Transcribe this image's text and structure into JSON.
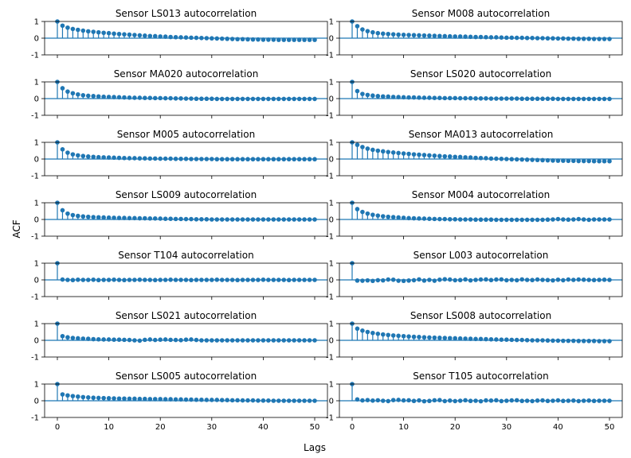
{
  "figure": {
    "ylabel": "ACF",
    "xlabel": "Lags",
    "colors": {
      "stem": "#1f77b4",
      "axes": "#000000",
      "background": "#ffffff"
    }
  },
  "chart_data": [
    {
      "type": "stem",
      "title": "Sensor LS013 autocorrelation",
      "x_range": [
        0,
        50
      ],
      "ylim": [
        -1,
        1
      ],
      "yticks": [
        -1,
        0,
        1
      ],
      "xticks": [
        0,
        10,
        20,
        30,
        40,
        50
      ],
      "acf": [
        1.0,
        0.75,
        0.63,
        0.55,
        0.5,
        0.45,
        0.41,
        0.38,
        0.35,
        0.32,
        0.3,
        0.27,
        0.25,
        0.23,
        0.21,
        0.19,
        0.17,
        0.15,
        0.13,
        0.12,
        0.1,
        0.09,
        0.07,
        0.06,
        0.05,
        0.04,
        0.03,
        0.02,
        0.01,
        0.0,
        -0.01,
        -0.02,
        -0.03,
        -0.04,
        -0.05,
        -0.06,
        -0.06,
        -0.07,
        -0.08,
        -0.08,
        -0.09,
        -0.09,
        -0.09,
        -0.1,
        -0.1,
        -0.1,
        -0.1,
        -0.1,
        -0.1,
        -0.1,
        -0.1
      ]
    },
    {
      "type": "stem",
      "title": "Sensor M008 autocorrelation",
      "x_range": [
        0,
        50
      ],
      "ylim": [
        -1,
        1
      ],
      "yticks": [
        -1,
        0,
        1
      ],
      "xticks": [
        0,
        10,
        20,
        30,
        40,
        50
      ],
      "acf": [
        1.0,
        0.72,
        0.52,
        0.42,
        0.35,
        0.3,
        0.27,
        0.25,
        0.23,
        0.21,
        0.2,
        0.19,
        0.18,
        0.17,
        0.16,
        0.15,
        0.14,
        0.13,
        0.12,
        0.11,
        0.1,
        0.1,
        0.09,
        0.08,
        0.07,
        0.07,
        0.06,
        0.05,
        0.05,
        0.04,
        0.03,
        0.03,
        0.02,
        0.02,
        0.01,
        0.01,
        0.0,
        0.0,
        -0.01,
        -0.01,
        -0.02,
        -0.02,
        -0.03,
        -0.03,
        -0.04,
        -0.04,
        -0.04,
        -0.05,
        -0.05,
        -0.05,
        -0.05
      ]
    },
    {
      "type": "stem",
      "title": "Sensor MA020 autocorrelation",
      "x_range": [
        0,
        50
      ],
      "ylim": [
        -1,
        1
      ],
      "yticks": [
        -1,
        0,
        1
      ],
      "xticks": [
        0,
        10,
        20,
        30,
        40,
        50
      ],
      "acf": [
        1.0,
        0.62,
        0.42,
        0.32,
        0.25,
        0.2,
        0.17,
        0.15,
        0.13,
        0.11,
        0.1,
        0.09,
        0.08,
        0.07,
        0.06,
        0.05,
        0.05,
        0.04,
        0.04,
        0.03,
        0.03,
        0.02,
        0.02,
        0.01,
        0.01,
        0.0,
        0.0,
        -0.01,
        -0.01,
        -0.01,
        -0.01,
        -0.02,
        -0.02,
        -0.02,
        -0.02,
        -0.02,
        -0.02,
        -0.02,
        -0.02,
        -0.02,
        -0.02,
        -0.02,
        -0.02,
        -0.02,
        -0.02,
        -0.02,
        -0.02,
        -0.02,
        -0.02,
        -0.02,
        -0.02
      ]
    },
    {
      "type": "stem",
      "title": "Sensor LS020 autocorrelation",
      "x_range": [
        0,
        50
      ],
      "ylim": [
        -1,
        1
      ],
      "yticks": [
        -1,
        0,
        1
      ],
      "xticks": [
        0,
        10,
        20,
        30,
        40,
        50
      ],
      "acf": [
        1.0,
        0.45,
        0.28,
        0.22,
        0.18,
        0.15,
        0.13,
        0.12,
        0.1,
        0.09,
        0.08,
        0.07,
        0.07,
        0.06,
        0.05,
        0.05,
        0.04,
        0.04,
        0.03,
        0.03,
        0.03,
        0.02,
        0.02,
        0.02,
        0.01,
        0.01,
        0.01,
        0.0,
        0.0,
        0.0,
        0.0,
        0.0,
        0.0,
        -0.01,
        -0.01,
        -0.01,
        -0.01,
        -0.01,
        -0.01,
        -0.01,
        -0.02,
        -0.02,
        -0.02,
        -0.02,
        -0.02,
        -0.02,
        -0.02,
        -0.02,
        -0.02,
        -0.02,
        -0.02
      ]
    },
    {
      "type": "stem",
      "title": "Sensor M005 autocorrelation",
      "x_range": [
        0,
        50
      ],
      "ylim": [
        -1,
        1
      ],
      "yticks": [
        -1,
        0,
        1
      ],
      "xticks": [
        0,
        10,
        20,
        30,
        40,
        50
      ],
      "acf": [
        1.0,
        0.58,
        0.38,
        0.28,
        0.22,
        0.18,
        0.15,
        0.13,
        0.11,
        0.1,
        0.09,
        0.08,
        0.07,
        0.06,
        0.05,
        0.05,
        0.04,
        0.04,
        0.03,
        0.03,
        0.02,
        0.02,
        0.02,
        0.01,
        0.01,
        0.01,
        0.0,
        0.0,
        0.0,
        0.0,
        0.0,
        -0.01,
        -0.01,
        -0.01,
        -0.01,
        -0.01,
        -0.01,
        -0.01,
        -0.01,
        -0.01,
        -0.01,
        -0.01,
        -0.01,
        -0.01,
        -0.01,
        -0.01,
        -0.01,
        -0.01,
        -0.01,
        -0.01,
        -0.01
      ]
    },
    {
      "type": "stem",
      "title": "Sensor MA013 autocorrelation",
      "x_range": [
        0,
        50
      ],
      "ylim": [
        -1,
        1
      ],
      "yticks": [
        -1,
        0,
        1
      ],
      "xticks": [
        0,
        10,
        20,
        30,
        40,
        50
      ],
      "acf": [
        1.0,
        0.85,
        0.72,
        0.62,
        0.55,
        0.5,
        0.46,
        0.42,
        0.39,
        0.36,
        0.33,
        0.31,
        0.28,
        0.26,
        0.24,
        0.22,
        0.2,
        0.18,
        0.16,
        0.15,
        0.13,
        0.12,
        0.1,
        0.09,
        0.07,
        0.06,
        0.05,
        0.03,
        0.02,
        0.01,
        0.0,
        -0.01,
        -0.02,
        -0.03,
        -0.04,
        -0.05,
        -0.06,
        -0.07,
        -0.08,
        -0.09,
        -0.1,
        -0.1,
        -0.11,
        -0.11,
        -0.12,
        -0.12,
        -0.12,
        -0.13,
        -0.13,
        -0.13,
        -0.13
      ]
    },
    {
      "type": "stem",
      "title": "Sensor LS009 autocorrelation",
      "x_range": [
        0,
        50
      ],
      "ylim": [
        -1,
        1
      ],
      "yticks": [
        -1,
        0,
        1
      ],
      "xticks": [
        0,
        10,
        20,
        30,
        40,
        50
      ],
      "acf": [
        1.0,
        0.55,
        0.35,
        0.26,
        0.21,
        0.18,
        0.16,
        0.14,
        0.13,
        0.12,
        0.11,
        0.1,
        0.09,
        0.09,
        0.08,
        0.08,
        0.07,
        0.07,
        0.06,
        0.06,
        0.05,
        0.04,
        0.04,
        0.03,
        0.03,
        0.02,
        0.02,
        0.01,
        0.01,
        0.01,
        0.0,
        0.0,
        0.0,
        0.0,
        0.0,
        0.0,
        0.0,
        0.0,
        0.0,
        0.0,
        0.0,
        0.0,
        0.0,
        0.0,
        0.0,
        0.0,
        0.0,
        0.0,
        0.0,
        0.0,
        0.0
      ]
    },
    {
      "type": "stem",
      "title": "Sensor M004 autocorrelation",
      "x_range": [
        0,
        50
      ],
      "ylim": [
        -1,
        1
      ],
      "yticks": [
        -1,
        0,
        1
      ],
      "xticks": [
        0,
        10,
        20,
        30,
        40,
        50
      ],
      "acf": [
        1.0,
        0.62,
        0.45,
        0.35,
        0.28,
        0.23,
        0.19,
        0.16,
        0.14,
        0.12,
        0.1,
        0.08,
        0.07,
        0.06,
        0.05,
        0.04,
        0.03,
        0.02,
        0.02,
        0.01,
        0.01,
        0.0,
        0.0,
        0.0,
        -0.01,
        -0.01,
        -0.01,
        -0.01,
        -0.02,
        -0.02,
        -0.02,
        -0.02,
        -0.02,
        -0.02,
        -0.02,
        -0.02,
        -0.02,
        -0.02,
        -0.01,
        0.0,
        0.02,
        0.0,
        -0.01,
        0.0,
        0.02,
        0.0,
        -0.02,
        0.0,
        0.0,
        0.0,
        0.0
      ]
    },
    {
      "type": "stem",
      "title": "Sensor T104 autocorrelation",
      "x_range": [
        0,
        50
      ],
      "ylim": [
        -1,
        1
      ],
      "yticks": [
        -1,
        0,
        1
      ],
      "xticks": [
        0,
        10,
        20,
        30,
        40,
        50
      ],
      "acf": [
        1.0,
        0.02,
        0.0,
        -0.01,
        0.01,
        0.0,
        0.0,
        0.01,
        -0.01,
        0.0,
        0.0,
        0.01,
        0.0,
        -0.01,
        0.0,
        0.0,
        0.01,
        0.0,
        0.0,
        -0.01,
        0.0,
        0.0,
        0.01,
        0.0,
        0.0,
        0.0,
        -0.01,
        0.0,
        0.0,
        0.0,
        0.0,
        0.01,
        0.0,
        0.0,
        0.0,
        -0.01,
        0.0,
        0.0,
        0.0,
        0.0,
        0.01,
        0.0,
        0.0,
        0.0,
        0.0,
        -0.01,
        0.0,
        0.0,
        0.0,
        0.0,
        0.0
      ]
    },
    {
      "type": "stem",
      "title": "Sensor L003 autocorrelation",
      "x_range": [
        0,
        50
      ],
      "ylim": [
        -1,
        1
      ],
      "yticks": [
        -1,
        0,
        1
      ],
      "xticks": [
        0,
        10,
        20,
        30,
        40,
        50
      ],
      "acf": [
        1.0,
        -0.04,
        -0.05,
        -0.03,
        -0.06,
        -0.02,
        -0.03,
        0.02,
        0.01,
        -0.05,
        -0.06,
        -0.04,
        -0.02,
        0.03,
        -0.04,
        0.0,
        -0.05,
        0.01,
        0.04,
        0.02,
        -0.02,
        -0.01,
        0.03,
        -0.03,
        0.0,
        0.02,
        0.03,
        -0.01,
        0.02,
        0.03,
        -0.02,
        0.0,
        -0.02,
        0.03,
        0.0,
        -0.01,
        0.02,
        0.0,
        -0.01,
        -0.03,
        0.01,
        -0.02,
        0.02,
        0.0,
        0.02,
        0.01,
        0.0,
        -0.01,
        0.0,
        0.01,
        0.0
      ]
    },
    {
      "type": "stem",
      "title": "Sensor LS021 autocorrelation",
      "x_range": [
        0,
        50
      ],
      "ylim": [
        -1,
        1
      ],
      "yticks": [
        -1,
        0,
        1
      ],
      "xticks": [
        0,
        10,
        20,
        30,
        40,
        50
      ],
      "acf": [
        1.0,
        0.25,
        0.18,
        0.14,
        0.12,
        0.1,
        0.09,
        0.07,
        0.06,
        0.05,
        0.05,
        0.04,
        0.04,
        0.03,
        0.02,
        0.0,
        -0.02,
        0.03,
        0.05,
        0.02,
        0.04,
        0.05,
        0.03,
        0.02,
        0.01,
        0.04,
        0.05,
        0.02,
        0.0,
        0.0,
        0.0,
        0.0,
        0.0,
        0.0,
        0.0,
        0.0,
        0.0,
        0.0,
        0.0,
        0.0,
        0.0,
        0.0,
        0.0,
        0.0,
        0.0,
        0.0,
        0.0,
        0.0,
        0.0,
        0.0,
        0.0
      ]
    },
    {
      "type": "stem",
      "title": "Sensor LS008 autocorrelation",
      "x_range": [
        0,
        50
      ],
      "ylim": [
        -1,
        1
      ],
      "yticks": [
        -1,
        0,
        1
      ],
      "xticks": [
        0,
        10,
        20,
        30,
        40,
        50
      ],
      "acf": [
        1.0,
        0.7,
        0.58,
        0.5,
        0.44,
        0.39,
        0.35,
        0.32,
        0.29,
        0.27,
        0.25,
        0.23,
        0.21,
        0.2,
        0.18,
        0.17,
        0.16,
        0.15,
        0.14,
        0.13,
        0.12,
        0.11,
        0.1,
        0.09,
        0.08,
        0.08,
        0.07,
        0.06,
        0.05,
        0.04,
        0.04,
        0.03,
        0.02,
        0.02,
        0.01,
        0.0,
        0.0,
        0.0,
        -0.01,
        -0.02,
        -0.02,
        -0.03,
        -0.03,
        -0.03,
        -0.04,
        -0.04,
        -0.04,
        -0.04,
        -0.05,
        -0.05,
        -0.05
      ]
    },
    {
      "type": "stem",
      "title": "Sensor LS005 autocorrelation",
      "x_range": [
        0,
        50
      ],
      "ylim": [
        -1,
        1
      ],
      "yticks": [
        -1,
        0,
        1
      ],
      "xticks": [
        0,
        10,
        20,
        30,
        40,
        50
      ],
      "acf": [
        1.0,
        0.38,
        0.32,
        0.28,
        0.25,
        0.22,
        0.2,
        0.18,
        0.17,
        0.16,
        0.15,
        0.14,
        0.13,
        0.13,
        0.12,
        0.12,
        0.11,
        0.11,
        0.1,
        0.1,
        0.1,
        0.09,
        0.09,
        0.08,
        0.08,
        0.07,
        0.07,
        0.06,
        0.06,
        0.05,
        0.05,
        0.05,
        0.04,
        0.04,
        0.03,
        0.03,
        0.02,
        0.02,
        0.02,
        0.01,
        0.01,
        0.01,
        0.0,
        0.0,
        0.0,
        0.0,
        0.0,
        0.0,
        0.0,
        0.0,
        0.0
      ]
    },
    {
      "type": "stem",
      "title": "Sensor T105 autocorrelation",
      "x_range": [
        0,
        50
      ],
      "ylim": [
        -1,
        1
      ],
      "yticks": [
        -1,
        0,
        1
      ],
      "xticks": [
        0,
        10,
        20,
        30,
        40,
        50
      ],
      "acf": [
        1.0,
        0.08,
        0.02,
        0.04,
        0.01,
        0.03,
        0.0,
        -0.02,
        0.04,
        0.05,
        0.02,
        0.03,
        -0.01,
        0.02,
        -0.03,
        -0.01,
        0.03,
        0.04,
        -0.02,
        0.01,
        -0.02,
        0.0,
        0.03,
        -0.01,
        0.0,
        -0.03,
        0.02,
        0.01,
        0.03,
        -0.02,
        0.0,
        0.02,
        0.03,
        -0.01,
        0.0,
        -0.02,
        0.01,
        0.02,
        -0.01,
        0.0,
        0.02,
        -0.01,
        0.0,
        0.01,
        -0.02,
        0.0,
        0.01,
        -0.01,
        0.0,
        0.0,
        0.0
      ]
    }
  ]
}
